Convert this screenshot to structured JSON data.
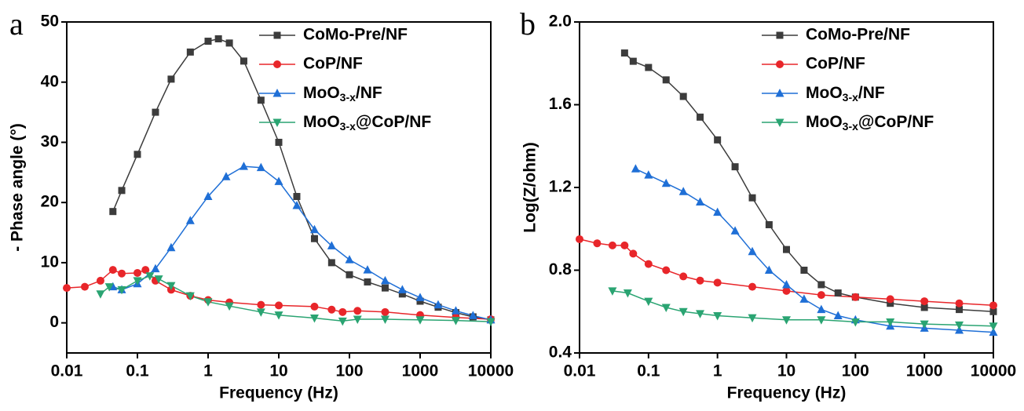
{
  "chart_data": [
    {
      "type": "line",
      "panel_label": "a",
      "x_label": "Frequency (Hz)",
      "y_label": "- Phase angle (°)",
      "x_scale": "log",
      "xlim": [
        0.01,
        10000
      ],
      "xticks": [
        0.01,
        0.1,
        1,
        10,
        100,
        1000,
        10000
      ],
      "ylim": [
        -5,
        50
      ],
      "yticks": [
        0,
        10,
        20,
        30,
        40,
        50
      ],
      "legend": "upper right",
      "series": [
        {
          "name": "CoMo-Pre/NF",
          "color": "#3c3c3c",
          "marker": "square",
          "x": [
            0.045,
            0.06,
            0.1,
            0.18,
            0.3,
            0.56,
            1,
            1.4,
            2,
            3.2,
            5.6,
            10,
            18,
            32,
            56,
            100,
            180,
            320,
            560,
            1000,
            1800,
            3200,
            5600,
            10000
          ],
          "values": [
            18.5,
            22,
            28,
            35,
            40.5,
            45,
            46.8,
            47.2,
            46.5,
            43.5,
            37,
            30,
            21,
            14,
            10,
            8,
            6.8,
            5.8,
            4.8,
            3.6,
            2.6,
            1.7,
            1,
            0.5
          ]
        },
        {
          "name": "CoP/NF",
          "color": "#e8262a",
          "marker": "circle",
          "x": [
            0.01,
            0.018,
            0.03,
            0.045,
            0.06,
            0.1,
            0.13,
            0.18,
            0.3,
            0.56,
            1,
            2,
            5.6,
            10,
            32,
            56,
            80,
            130,
            320,
            1000,
            3200,
            10000
          ],
          "values": [
            5.8,
            6,
            7,
            8.8,
            8.2,
            8.3,
            8.8,
            7,
            5.5,
            4.5,
            3.8,
            3.4,
            3,
            2.9,
            2.7,
            2.2,
            1.8,
            2,
            1.8,
            1.3,
            0.9,
            0.6
          ]
        },
        {
          "name": "MoO3-x/NF",
          "color": "#1f6fd6",
          "marker": "triangle-up",
          "x": [
            0.045,
            0.06,
            0.1,
            0.18,
            0.3,
            0.56,
            1,
            1.8,
            3.2,
            5.6,
            10,
            18,
            32,
            56,
            100,
            180,
            320,
            560,
            1000,
            1800,
            3200,
            5600,
            10000
          ],
          "values": [
            6,
            5.5,
            6.5,
            9,
            12.5,
            17,
            21,
            24.3,
            26,
            25.8,
            23.5,
            19.5,
            15.5,
            12.8,
            10.5,
            8.8,
            7,
            5.5,
            4.2,
            3,
            2,
            1.2,
            0.5
          ]
        },
        {
          "name": "MoO3-x@CoP/NF",
          "color": "#2aa472",
          "marker": "triangle-down",
          "x": [
            0.03,
            0.04,
            0.06,
            0.1,
            0.15,
            0.2,
            0.3,
            0.56,
            1,
            2,
            5.6,
            10,
            32,
            80,
            130,
            320,
            1000,
            3200,
            10000
          ],
          "values": [
            4.8,
            6,
            5.5,
            7,
            7.8,
            7.3,
            6.2,
            4.5,
            3.5,
            2.8,
            1.8,
            1.3,
            0.8,
            0.3,
            0.6,
            0.6,
            0.5,
            0.4,
            0.2
          ]
        }
      ]
    },
    {
      "type": "line",
      "panel_label": "b",
      "x_label": "Frequency (Hz)",
      "y_label": "Log(Z/ohm)",
      "x_scale": "log",
      "xlim": [
        0.01,
        10000
      ],
      "xticks": [
        0.01,
        0.1,
        1,
        10,
        100,
        1000,
        10000
      ],
      "ylim": [
        0.4,
        2.0
      ],
      "yticks": [
        0.4,
        0.8,
        1.2,
        1.6,
        {
          "value": 2,
          "label": "2.0"
        }
      ],
      "legend": "upper right",
      "series": [
        {
          "name": "CoMo-Pre/NF",
          "color": "#3c3c3c",
          "marker": "square",
          "x": [
            0.045,
            0.06,
            0.1,
            0.18,
            0.32,
            0.56,
            1,
            1.8,
            3.2,
            5.6,
            10,
            18,
            32,
            56,
            100,
            320,
            1000,
            3200,
            10000
          ],
          "values": [
            1.85,
            1.81,
            1.78,
            1.72,
            1.64,
            1.54,
            1.43,
            1.3,
            1.15,
            1.02,
            0.9,
            0.8,
            0.73,
            0.69,
            0.67,
            0.64,
            0.62,
            0.61,
            0.6
          ]
        },
        {
          "name": "CoP/NF",
          "color": "#e8262a",
          "marker": "circle",
          "x": [
            0.01,
            0.018,
            0.03,
            0.045,
            0.06,
            0.1,
            0.18,
            0.32,
            0.56,
            1,
            3.2,
            10,
            32,
            100,
            320,
            1000,
            3200,
            10000
          ],
          "values": [
            0.95,
            0.93,
            0.92,
            0.92,
            0.88,
            0.83,
            0.8,
            0.77,
            0.75,
            0.74,
            0.72,
            0.7,
            0.68,
            0.67,
            0.66,
            0.65,
            0.64,
            0.63
          ]
        },
        {
          "name": "MoO3-x/NF",
          "color": "#1f6fd6",
          "marker": "triangle-up",
          "x": [
            0.065,
            0.1,
            0.18,
            0.32,
            0.56,
            1,
            1.8,
            3.2,
            5.6,
            10,
            18,
            32,
            56,
            100,
            320,
            1000,
            3200,
            10000
          ],
          "values": [
            1.29,
            1.26,
            1.22,
            1.18,
            1.13,
            1.08,
            0.99,
            0.89,
            0.8,
            0.73,
            0.66,
            0.61,
            0.58,
            0.56,
            0.53,
            0.52,
            0.51,
            0.5
          ]
        },
        {
          "name": "MoO3-x@CoP/NF",
          "color": "#2aa472",
          "marker": "triangle-down",
          "x": [
            0.03,
            0.05,
            0.1,
            0.18,
            0.32,
            0.56,
            1,
            3.2,
            10,
            32,
            100,
            320,
            1000,
            3200,
            10000
          ],
          "values": [
            0.7,
            0.69,
            0.65,
            0.62,
            0.6,
            0.59,
            0.58,
            0.57,
            0.56,
            0.56,
            0.55,
            0.55,
            0.54,
            0.535,
            0.53
          ]
        }
      ]
    }
  ]
}
